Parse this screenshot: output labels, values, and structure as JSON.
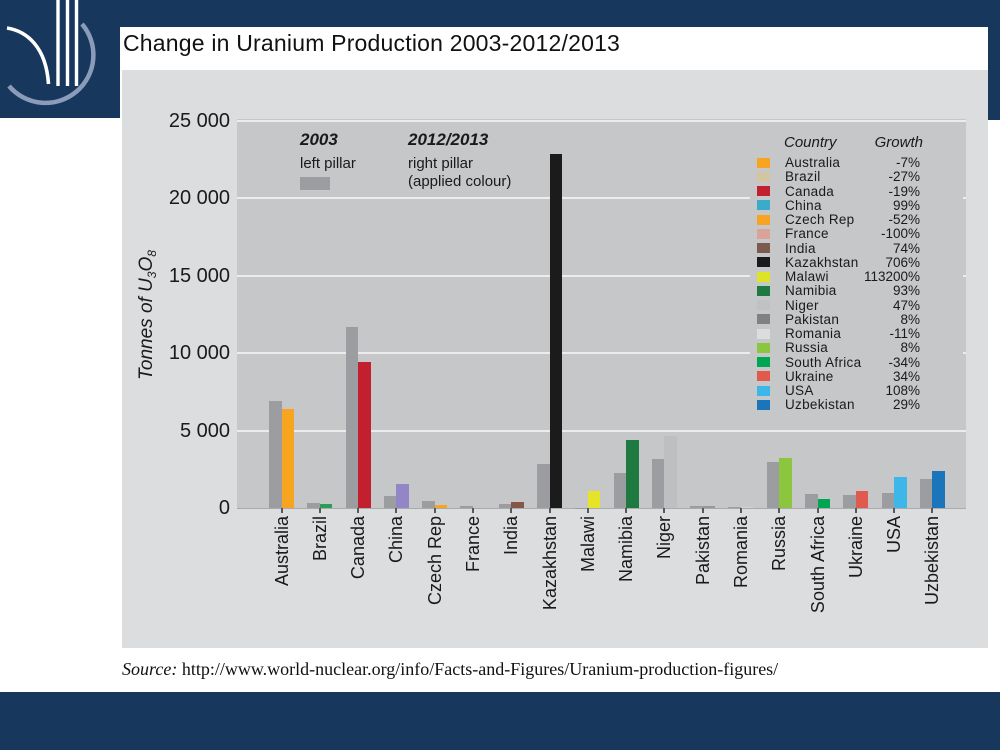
{
  "slide": {
    "title": "Change in Uranium Production 2003-2012/2013"
  },
  "logo": {
    "name": "world-nuclear-logo",
    "bg": "#17375d",
    "ring": "#8b9cba",
    "lines": "#ffffff"
  },
  "colors": {
    "frame_navy": "#17375d",
    "panel_gray": "#dcddde",
    "plot_gray": "#c6c7c9",
    "gridline": "#ececec",
    "bar_2003_gray": "#9c9da0"
  },
  "source": {
    "label": "Source:",
    "url": "http://www.world-nuclear.org/info/Facts-and-Figures/Uranium-production-figures/"
  },
  "chart_data": {
    "type": "bar",
    "title": "Change in Uranium Production 2003-2012/2013",
    "ylabel": "Tonnes of U3O8",
    "ylabel_parts": [
      {
        "t": "Tonnes of U"
      },
      {
        "t": "3",
        "sub": true
      },
      {
        "t": "O"
      },
      {
        "t": "8",
        "sub": true
      }
    ],
    "ylim": [
      0,
      25000
    ],
    "ytick_labels": [
      "0",
      "5 000",
      "10 000",
      "15 000",
      "20 000",
      "25 000"
    ],
    "grid": "horizontal",
    "legend_position": "top-right box",
    "notes": {
      "left": {
        "year": "2003",
        "line1": "left pillar"
      },
      "right": {
        "year": "2012/2013",
        "line1": "right pillar",
        "line2": "(applied colour)"
      }
    },
    "legend_headers": {
      "country": "Country",
      "growth": "Growth"
    },
    "categories": [
      "Australia",
      "Brazil",
      "Canada",
      "China",
      "Czech Rep",
      "France",
      "India",
      "Kazakhstan",
      "Malawi",
      "Namibia",
      "Niger",
      "Pakistan",
      "Romania",
      "Russia",
      "South Africa",
      "Ukraine",
      "USA",
      "Uzbekistan"
    ],
    "series": [
      {
        "name": "2003",
        "color": "#9c9da0",
        "values": [
          6900,
          310,
          11700,
          770,
          450,
          120,
          230,
          2840,
          10,
          2280,
          3140,
          100,
          90,
          2990,
          900,
          840,
          950,
          1870
        ]
      },
      {
        "name": "2012/2013",
        "colors": [
          "#f7a421",
          "#2a9e57",
          "#c2202f",
          "#9486c6",
          "#f7a421",
          "#d9a39a",
          "#84574a",
          "#1b1b1b",
          "#e5e428",
          "#1e7a40",
          "#bdbfc1",
          "#97989a",
          "#d2d3d5",
          "#8cc63f",
          "#00a651",
          "#e05a4e",
          "#3db7e8",
          "#1b75bb"
        ],
        "values": [
          6420,
          230,
          9450,
          1530,
          215,
          0,
          400,
          22900,
          1130,
          4400,
          4620,
          108,
          80,
          3230,
          600,
          1130,
          1980,
          2410
        ]
      }
    ],
    "growth": [
      "-7%",
      "-27%",
      "-19%",
      "99%",
      "-52%",
      "-100%",
      "74%",
      "706%",
      "113200%",
      "93%",
      "47%",
      "8%",
      "-11%",
      "8%",
      "-34%",
      "34%",
      "108%",
      "29%"
    ],
    "legend_swatch_colors": [
      "#f7a421",
      "#d2c5a2",
      "#c2202f",
      "#3aabc8",
      "#f7a421",
      "#d9a39a",
      "#7d5a4e",
      "#1b1b1b",
      "#dde327",
      "#1e7a40",
      "#bfc1c3",
      "#808184",
      "#dcddde",
      "#8cc63f",
      "#00a651",
      "#e05a4e",
      "#3db7e8",
      "#1b75bb"
    ]
  }
}
